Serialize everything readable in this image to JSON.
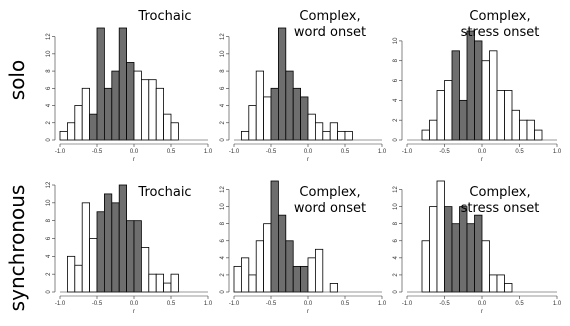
{
  "row_labels": [
    "solo",
    "synchronous"
  ],
  "chart_data": [
    {
      "type": "bar",
      "title_lines": [
        "Trochaic"
      ],
      "xlabel": "r",
      "xlim": [
        -1.0,
        1.0
      ],
      "ylim": [
        0,
        13
      ],
      "xticks": [
        "-1.0",
        "-0.5",
        "0.0",
        "0.5",
        "1.0"
      ],
      "yticks": [
        0,
        2,
        4,
        6,
        8,
        10,
        12
      ],
      "bin_width": 0.1,
      "bin_starts": [
        -1.0,
        -0.9,
        -0.8,
        -0.7,
        -0.6,
        -0.5,
        -0.4,
        -0.3,
        -0.2,
        -0.1,
        0.0,
        0.1,
        0.2,
        0.3,
        0.4,
        0.5
      ],
      "values": [
        1,
        2,
        4,
        6,
        3,
        13,
        6,
        8,
        13,
        9,
        8,
        7,
        7,
        6,
        3,
        2
      ],
      "highlighted": [
        false,
        false,
        false,
        false,
        true,
        true,
        true,
        true,
        true,
        true,
        false,
        false,
        false,
        false,
        false,
        false
      ]
    },
    {
      "type": "bar",
      "title_lines": [
        "Complex,",
        "word onset"
      ],
      "xlabel": "r",
      "xlim": [
        -1.0,
        1.0
      ],
      "ylim": [
        0,
        13
      ],
      "xticks": [
        "-1.0",
        "-0.5",
        "0.0",
        "0.5",
        "1.0"
      ],
      "yticks": [
        0,
        2,
        4,
        6,
        8,
        10,
        12
      ],
      "bin_width": 0.1,
      "bin_starts": [
        -0.9,
        -0.8,
        -0.7,
        -0.6,
        -0.5,
        -0.4,
        -0.3,
        -0.2,
        -0.1,
        0.0,
        0.1,
        0.2,
        0.3,
        0.4,
        0.5
      ],
      "values": [
        1,
        4,
        8,
        5,
        6,
        13,
        8,
        6,
        5,
        3,
        2,
        1,
        2,
        1,
        1
      ],
      "highlighted": [
        false,
        false,
        false,
        false,
        true,
        true,
        true,
        true,
        true,
        false,
        false,
        false,
        false,
        false,
        false
      ]
    },
    {
      "type": "bar",
      "title_lines": [
        "Complex,",
        "stress onset"
      ],
      "xlabel": "r",
      "xlim": [
        -1.0,
        1.0
      ],
      "ylim": [
        0,
        11
      ],
      "xticks": [
        "-1.0",
        "-0.5",
        "0.0",
        "0.5",
        "1.0"
      ],
      "yticks": [
        0,
        2,
        4,
        6,
        8,
        10
      ],
      "bin_width": 0.1,
      "bin_starts": [
        -0.8,
        -0.7,
        -0.6,
        -0.5,
        -0.4,
        -0.3,
        -0.2,
        -0.1,
        0.0,
        0.1,
        0.2,
        0.3,
        0.4,
        0.5,
        0.6,
        0.7
      ],
      "values": [
        1,
        2,
        5,
        6,
        9,
        4,
        11,
        10,
        8,
        9,
        5,
        5,
        3,
        2,
        2,
        1
      ],
      "highlighted": [
        false,
        false,
        false,
        false,
        true,
        true,
        true,
        true,
        false,
        false,
        false,
        false,
        false,
        false,
        false,
        false
      ]
    },
    {
      "type": "bar",
      "title_lines": [
        "Trochaic"
      ],
      "xlabel": "r",
      "xlim": [
        -1.0,
        1.0
      ],
      "ylim": [
        0,
        12
      ],
      "xticks": [
        "-1.0",
        "-0.5",
        "0.0",
        "0.5",
        "1.0"
      ],
      "yticks": [
        0,
        2,
        4,
        6,
        8,
        10,
        12
      ],
      "bin_width": 0.1,
      "bin_starts": [
        -0.9,
        -0.8,
        -0.7,
        -0.6,
        -0.5,
        -0.4,
        -0.3,
        -0.2,
        -0.1,
        0.0,
        0.1,
        0.2,
        0.3,
        0.4,
        0.5
      ],
      "values": [
        4,
        3,
        10,
        6,
        9,
        11,
        10,
        12,
        8,
        8,
        5,
        2,
        2,
        1,
        2
      ],
      "highlighted": [
        false,
        false,
        false,
        false,
        true,
        true,
        true,
        true,
        true,
        true,
        false,
        false,
        false,
        false,
        false
      ]
    },
    {
      "type": "bar",
      "title_lines": [
        "Complex,",
        "word onset"
      ],
      "xlabel": "r",
      "xlim": [
        -1.0,
        1.0
      ],
      "ylim": [
        0,
        13
      ],
      "xticks": [
        "-1.0",
        "-0.5",
        "0.0",
        "0.5",
        "1.0"
      ],
      "yticks": [
        0,
        2,
        4,
        6,
        8,
        10,
        12
      ],
      "bin_width": 0.1,
      "bin_starts": [
        -1.0,
        -0.9,
        -0.8,
        -0.7,
        -0.6,
        -0.5,
        -0.4,
        -0.3,
        -0.2,
        -0.1,
        0.0,
        0.1,
        0.2,
        0.3,
        0.4
      ],
      "values": [
        3,
        4,
        2,
        6,
        8,
        13,
        9,
        6,
        3,
        3,
        4,
        5,
        0,
        1,
        0
      ],
      "highlighted": [
        false,
        false,
        false,
        false,
        false,
        true,
        true,
        true,
        true,
        true,
        false,
        false,
        false,
        false,
        false
      ]
    },
    {
      "type": "bar",
      "title_lines": [
        "Complex,",
        "stress onset"
      ],
      "xlabel": "r",
      "xlim": [
        -1.0,
        1.0
      ],
      "ylim": [
        0,
        13
      ],
      "xticks": [
        "-1.0",
        "-0.5",
        "0.0",
        "0.5",
        "1.0"
      ],
      "yticks": [
        0,
        2,
        4,
        6,
        8,
        10,
        12
      ],
      "bin_width": 0.1,
      "bin_starts": [
        -0.8,
        -0.7,
        -0.6,
        -0.5,
        -0.4,
        -0.3,
        -0.2,
        -0.1,
        0.0,
        0.1,
        0.2,
        0.3
      ],
      "values": [
        6,
        10,
        13,
        10,
        8,
        10,
        8,
        9,
        6,
        2,
        2,
        1
      ],
      "highlighted": [
        false,
        false,
        false,
        true,
        true,
        true,
        true,
        true,
        false,
        false,
        false,
        false
      ]
    }
  ],
  "colors": {
    "highlighted_fill": "#6e6e6e",
    "plain_fill": "#ffffff",
    "bar_stroke": "#000000",
    "axis": "#333333"
  }
}
